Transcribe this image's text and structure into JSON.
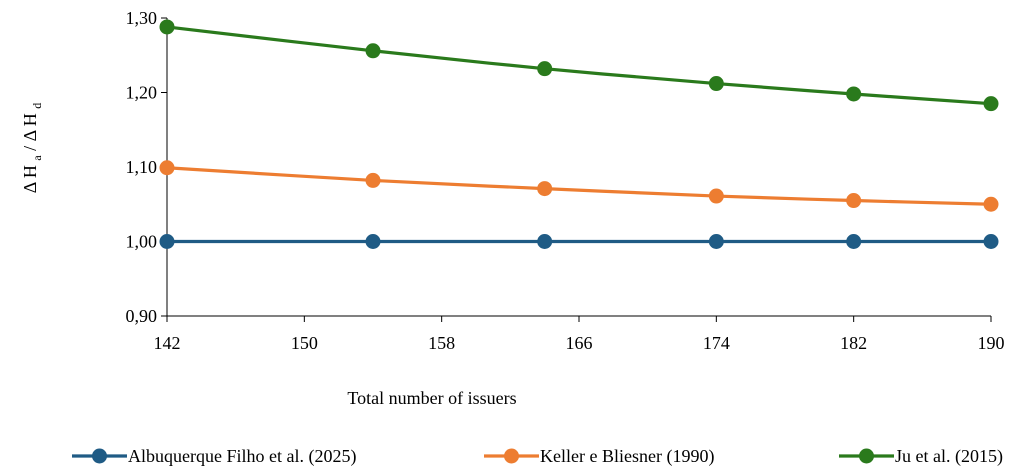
{
  "chart_data": {
    "type": "line",
    "x": [
      142,
      154,
      164,
      174,
      182,
      190
    ],
    "x_ticks": [
      "142",
      "150",
      "158",
      "166",
      "174",
      "182",
      "190"
    ],
    "xlim": [
      142,
      190
    ],
    "ylim": [
      0.9,
      1.3
    ],
    "y_ticks": [
      "0,90",
      "1,00",
      "1,10",
      "1,20",
      "1,30"
    ],
    "xlabel": "Total number of issuers",
    "ylabel_parts": {
      "delta": "Δ",
      "h": "H",
      "sub_a": "a",
      "slash": "/",
      "sub_d": "d"
    },
    "grid": false,
    "legend": "bottom",
    "series": [
      {
        "name": "Albuquerque Filho et al. (2025)",
        "color": "#1f5b85",
        "values": [
          1.0,
          1.0,
          1.0,
          1.0,
          1.0,
          1.0
        ]
      },
      {
        "name": "Keller e Bliesner (1990)",
        "color": "#ed7d31",
        "values": [
          1.099,
          1.082,
          1.071,
          1.061,
          1.055,
          1.05
        ]
      },
      {
        "name": "Ju et al. (2015)",
        "color": "#2a7a1c",
        "values": [
          1.288,
          1.256,
          1.232,
          1.212,
          1.198,
          1.185
        ]
      }
    ]
  }
}
